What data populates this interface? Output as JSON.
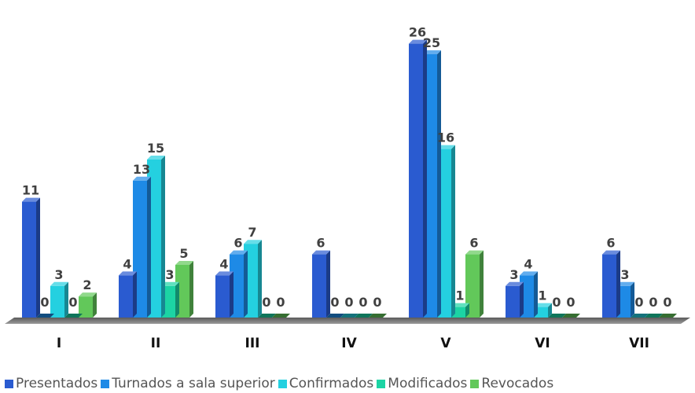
{
  "chart_data": {
    "type": "bar",
    "categories": [
      "I",
      "II",
      "III",
      "IV",
      "V",
      "VI",
      "VII"
    ],
    "series": [
      {
        "name": "Presentados",
        "values": [
          11,
          4,
          4,
          6,
          26,
          3,
          6
        ],
        "color": "#2a5bd0"
      },
      {
        "name": "Turnados a sala superior",
        "values": [
          0,
          13,
          6,
          0,
          25,
          4,
          3
        ],
        "color": "#1e8ae6"
      },
      {
        "name": "Confirmados",
        "values": [
          3,
          15,
          7,
          0,
          16,
          1,
          0
        ],
        "color": "#24d0e0"
      },
      {
        "name": "Modificados",
        "values": [
          0,
          3,
          0,
          0,
          1,
          0,
          0
        ],
        "color": "#1cd4a4"
      },
      {
        "name": "Revocados",
        "values": [
          2,
          5,
          0,
          0,
          6,
          0,
          0
        ],
        "color": "#62c85a"
      }
    ],
    "title": "",
    "xlabel": "",
    "ylabel": "",
    "ylim": [
      0,
      26
    ],
    "grid": false,
    "legend_position": "bottom"
  }
}
